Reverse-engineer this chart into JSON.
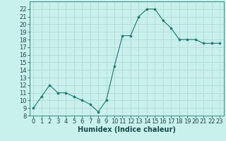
{
  "x": [
    0,
    1,
    2,
    3,
    4,
    5,
    6,
    7,
    8,
    9,
    10,
    11,
    12,
    13,
    14,
    15,
    16,
    17,
    18,
    19,
    20,
    21,
    22,
    23
  ],
  "y": [
    9,
    10.5,
    12,
    11,
    11,
    10.5,
    10,
    9.5,
    8.5,
    10,
    14.5,
    18.5,
    18.5,
    21,
    22,
    22,
    20.5,
    19.5,
    18,
    18,
    18,
    17.5,
    17.5,
    17.5
  ],
  "line_color": "#1a7a6e",
  "marker": "*",
  "marker_size": 3,
  "bg_color": "#c8f0ec",
  "grid_color": "#b0d8d0",
  "xlabel": "Humidex (Indice chaleur)",
  "xlabel_fontsize": 7,
  "tick_fontsize": 6,
  "ylim": [
    8,
    23
  ],
  "xlim": [
    -0.5,
    23.5
  ],
  "yticks": [
    8,
    9,
    10,
    11,
    12,
    13,
    14,
    15,
    16,
    17,
    18,
    19,
    20,
    21,
    22
  ],
  "xticks": [
    0,
    1,
    2,
    3,
    4,
    5,
    6,
    7,
    8,
    9,
    10,
    11,
    12,
    13,
    14,
    15,
    16,
    17,
    18,
    19,
    20,
    21,
    22,
    23
  ],
  "spine_color": "#1a7a6e",
  "text_color": "#1a4a4a"
}
